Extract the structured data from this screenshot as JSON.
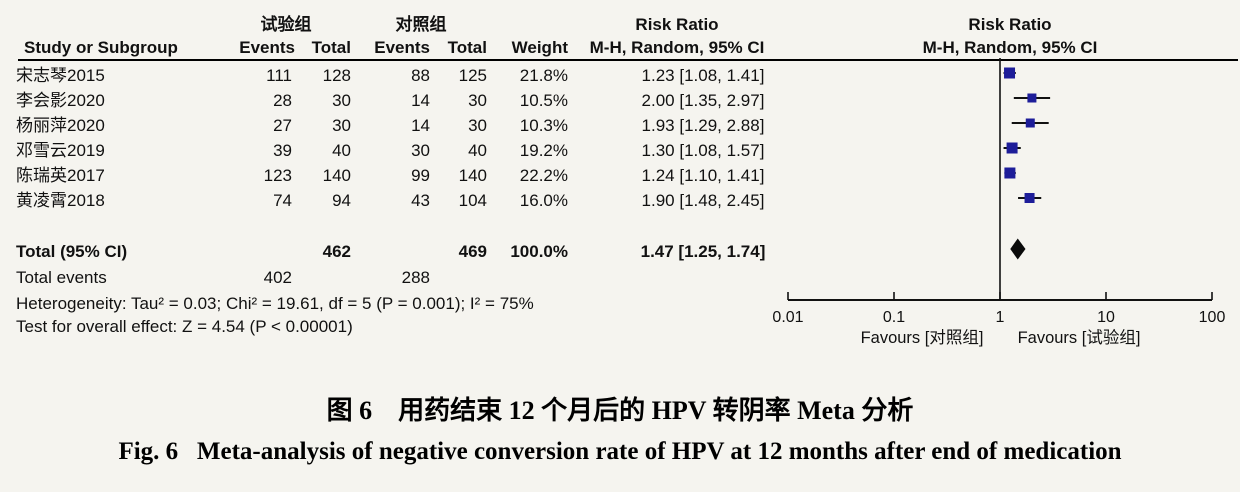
{
  "table": {
    "header": {
      "group_experimental": "试验组",
      "group_control": "对照组",
      "risk_ratio": "Risk Ratio",
      "method": "M-H, Random, 95% CI",
      "study": "Study or Subgroup",
      "events": "Events",
      "total": "Total",
      "weight": "Weight"
    }
  },
  "studies": [
    {
      "name": "宋志琴2015",
      "events1": "111",
      "total1": "128",
      "events2": "88",
      "total2": "125",
      "weight": "21.8%",
      "rr_ci": "1.23 [1.08, 1.41]",
      "rr": 1.23,
      "low": 1.08,
      "high": 1.41,
      "weight_pct": 21.8
    },
    {
      "name": "李会影2020",
      "events1": "28",
      "total1": "30",
      "events2": "14",
      "total2": "30",
      "weight": "10.5%",
      "rr_ci": "2.00 [1.35, 2.97]",
      "rr": 2.0,
      "low": 1.35,
      "high": 2.97,
      "weight_pct": 10.5
    },
    {
      "name": "杨丽萍2020",
      "events1": "27",
      "total1": "30",
      "events2": "14",
      "total2": "30",
      "weight": "10.3%",
      "rr_ci": "1.93 [1.29, 2.88]",
      "rr": 1.93,
      "low": 1.29,
      "high": 2.88,
      "weight_pct": 10.3
    },
    {
      "name": "邓雪云2019",
      "events1": "39",
      "total1": "40",
      "events2": "30",
      "total2": "40",
      "weight": "19.2%",
      "rr_ci": "1.30 [1.08, 1.57]",
      "rr": 1.3,
      "low": 1.08,
      "high": 1.57,
      "weight_pct": 19.2
    },
    {
      "name": "陈瑞英2017",
      "events1": "123",
      "total1": "140",
      "events2": "99",
      "total2": "140",
      "weight": "22.2%",
      "rr_ci": "1.24 [1.10, 1.41]",
      "rr": 1.24,
      "low": 1.1,
      "high": 1.41,
      "weight_pct": 22.2
    },
    {
      "name": "黄凌霄2018",
      "events1": "74",
      "total1": "94",
      "events2": "43",
      "total2": "104",
      "weight": "16.0%",
      "rr_ci": "1.90 [1.48, 2.45]",
      "rr": 1.9,
      "low": 1.48,
      "high": 2.45,
      "weight_pct": 16.0
    }
  ],
  "totals": {
    "label": "Total (95% CI)",
    "total1": "462",
    "total2": "469",
    "weight": "100.0%",
    "rr_ci": "1.47 [1.25, 1.74]",
    "rr": 1.47,
    "low": 1.25,
    "high": 1.74
  },
  "total_events": {
    "label": "Total events",
    "events1": "402",
    "events2": "288"
  },
  "stats": {
    "heterogeneity": "Heterogeneity: Tau² = 0.03; Chi² = 19.61, df = 5 (P = 0.001); I² = 75%",
    "overall": "Test for overall effect: Z = 4.54 (P < 0.00001)"
  },
  "axis": {
    "ticks": [
      "0.01",
      "0.1",
      "1",
      "10",
      "100"
    ],
    "favours_left": "Favours [对照组]",
    "favours_right": "Favours [试验组]"
  },
  "caption": {
    "zh": "图 6　用药结束 12 个月后的 HPV 转阴率 Meta 分析",
    "en": "Fig. 6   Meta-analysis of negative conversion rate of HPV at 12 months after end of medication"
  },
  "colors": {
    "marker": "#1d1d99",
    "diamond": "#0a0a0a",
    "line": "#111111",
    "background": "#f5f4ef"
  },
  "chart_data": {
    "type": "forest",
    "title": "Risk Ratio  M-H, Random, 95% CI",
    "x_scale": "log10",
    "x_ticks": [
      0.01,
      0.1,
      1,
      10,
      100
    ],
    "xlim": [
      0.01,
      100
    ],
    "null_line": 1,
    "studies": [
      {
        "name": "宋志琴2015",
        "events_exp": 111,
        "total_exp": 128,
        "events_ctrl": 88,
        "total_ctrl": 125,
        "weight_pct": 21.8,
        "rr": 1.23,
        "ci": [
          1.08,
          1.41
        ]
      },
      {
        "name": "李会影2020",
        "events_exp": 28,
        "total_exp": 30,
        "events_ctrl": 14,
        "total_ctrl": 30,
        "weight_pct": 10.5,
        "rr": 2.0,
        "ci": [
          1.35,
          2.97
        ]
      },
      {
        "name": "杨丽萍2020",
        "events_exp": 27,
        "total_exp": 30,
        "events_ctrl": 14,
        "total_ctrl": 30,
        "weight_pct": 10.3,
        "rr": 1.93,
        "ci": [
          1.29,
          2.88
        ]
      },
      {
        "name": "邓雪云2019",
        "events_exp": 39,
        "total_exp": 40,
        "events_ctrl": 30,
        "total_ctrl": 40,
        "weight_pct": 19.2,
        "rr": 1.3,
        "ci": [
          1.08,
          1.57
        ]
      },
      {
        "name": "陈瑞英2017",
        "events_exp": 123,
        "total_exp": 140,
        "events_ctrl": 99,
        "total_ctrl": 140,
        "weight_pct": 22.2,
        "rr": 1.24,
        "ci": [
          1.1,
          1.41
        ]
      },
      {
        "name": "黄凌霄2018",
        "events_exp": 74,
        "total_exp": 94,
        "events_ctrl": 43,
        "total_ctrl": 104,
        "weight_pct": 16.0,
        "rr": 1.9,
        "ci": [
          1.48,
          2.45
        ]
      }
    ],
    "total": {
      "total_exp": 462,
      "total_ctrl": 469,
      "events_exp": 402,
      "events_ctrl": 288,
      "weight_pct": 100.0,
      "rr": 1.47,
      "ci": [
        1.25,
        1.74
      ]
    },
    "heterogeneity": {
      "tau2": 0.03,
      "chi2": 19.61,
      "df": 5,
      "p": 0.001,
      "i2_pct": 75
    },
    "overall_effect": {
      "z": 4.54,
      "p": "< 0.00001"
    },
    "favours_left": "Favours [对照组]",
    "favours_right": "Favours [试验组]"
  }
}
